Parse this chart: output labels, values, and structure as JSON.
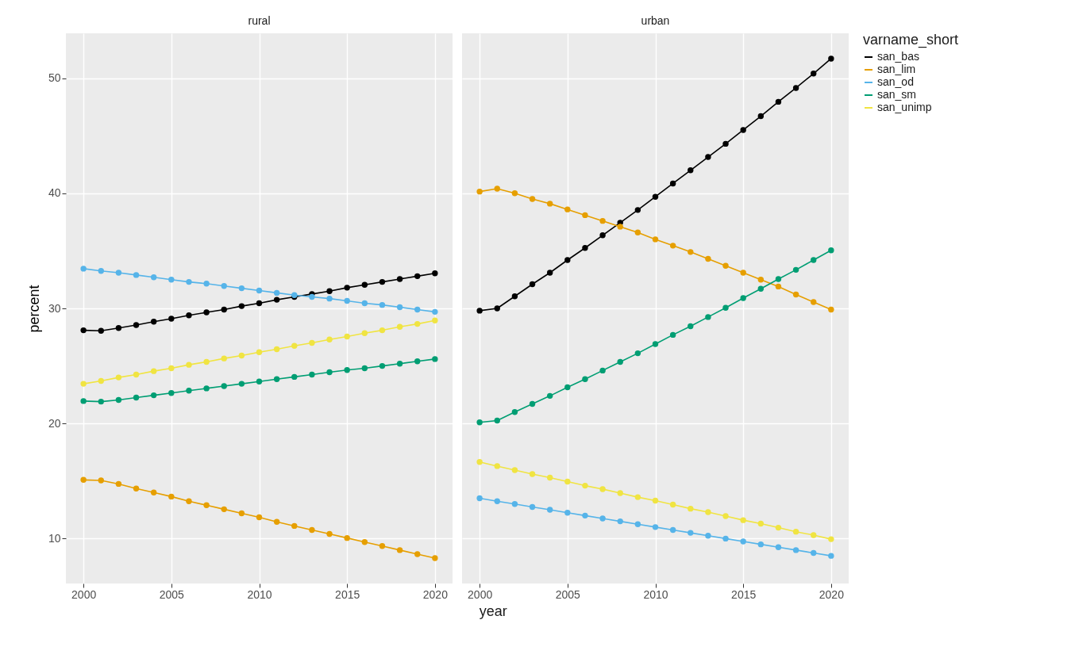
{
  "chart_data": [
    {
      "type": "line",
      "title": "rural",
      "xlabel": "year",
      "ylabel": "percent",
      "legend": "right",
      "grid": true,
      "marker": "circle",
      "x": [
        2000,
        2001,
        2002,
        2003,
        2004,
        2005,
        2006,
        2007,
        2008,
        2009,
        2010,
        2011,
        2012,
        2013,
        2014,
        2015,
        2016,
        2017,
        2018,
        2019,
        2020
      ],
      "xlim": [
        1999,
        2021
      ],
      "xticks": [
        2000,
        2005,
        2010,
        2015,
        2020
      ],
      "ylim": [
        6.1,
        53.9
      ],
      "yticks": [
        10,
        20,
        30,
        40,
        50
      ],
      "series": [
        {
          "name": "san_bas",
          "color": "#000000",
          "values": [
            28.1,
            28.05,
            28.3,
            28.55,
            28.85,
            29.1,
            29.4,
            29.65,
            29.9,
            30.2,
            30.45,
            30.75,
            31.0,
            31.25,
            31.5,
            31.8,
            32.05,
            32.3,
            32.55,
            32.8,
            33.05
          ]
        },
        {
          "name": "san_lim",
          "color": "#e69f00",
          "values": [
            15.1,
            15.05,
            14.75,
            14.35,
            14.0,
            13.65,
            13.25,
            12.9,
            12.55,
            12.2,
            11.85,
            11.45,
            11.1,
            10.75,
            10.4,
            10.05,
            9.7,
            9.35,
            9.0,
            8.65,
            8.3
          ]
        },
        {
          "name": "san_od",
          "color": "#56b4e9",
          "values": [
            33.45,
            33.25,
            33.1,
            32.9,
            32.7,
            32.5,
            32.3,
            32.15,
            31.95,
            31.75,
            31.55,
            31.35,
            31.15,
            31.0,
            30.85,
            30.65,
            30.45,
            30.3,
            30.1,
            29.9,
            29.7
          ]
        },
        {
          "name": "san_sm",
          "color": "#009e73",
          "values": [
            21.95,
            21.9,
            22.05,
            22.25,
            22.45,
            22.65,
            22.85,
            23.05,
            23.25,
            23.45,
            23.65,
            23.85,
            24.05,
            24.25,
            24.45,
            24.65,
            24.8,
            25.0,
            25.2,
            25.4,
            25.6
          ]
        },
        {
          "name": "san_unimp",
          "color": "#f0e442",
          "values": [
            23.45,
            23.7,
            24.0,
            24.25,
            24.55,
            24.8,
            25.1,
            25.35,
            25.65,
            25.9,
            26.2,
            26.45,
            26.75,
            27.0,
            27.3,
            27.55,
            27.85,
            28.1,
            28.4,
            28.65,
            28.95
          ]
        }
      ]
    },
    {
      "type": "line",
      "title": "urban",
      "legend_title": "varname_short",
      "legend": "right",
      "grid": true,
      "marker": "circle",
      "tick_labels": "x",
      "x": [
        2000,
        2001,
        2002,
        2003,
        2004,
        2005,
        2006,
        2007,
        2008,
        2009,
        2010,
        2011,
        2012,
        2013,
        2014,
        2015,
        2016,
        2017,
        2018,
        2019,
        2020
      ],
      "xlim": [
        1999,
        2021
      ],
      "xticks": [
        2000,
        2005,
        2010,
        2015,
        2020
      ],
      "ylim": [
        6.1,
        53.9
      ],
      "yticks": [
        10,
        20,
        30,
        40,
        50
      ],
      "series": [
        {
          "name": "san_bas",
          "color": "#000000",
          "values": [
            29.8,
            30.0,
            31.05,
            32.1,
            33.1,
            34.2,
            35.25,
            36.35,
            37.45,
            38.55,
            39.7,
            40.85,
            42.0,
            43.15,
            44.3,
            45.5,
            46.7,
            47.95,
            49.15,
            50.4,
            51.7
          ]
        },
        {
          "name": "san_lim",
          "color": "#e69f00",
          "values": [
            40.15,
            40.4,
            40.0,
            39.5,
            39.1,
            38.6,
            38.1,
            37.6,
            37.1,
            36.6,
            36.0,
            35.45,
            34.9,
            34.3,
            33.7,
            33.1,
            32.5,
            31.9,
            31.2,
            30.55,
            29.9
          ]
        },
        {
          "name": "san_od",
          "color": "#56b4e9",
          "values": [
            13.5,
            13.25,
            13.0,
            12.75,
            12.5,
            12.25,
            12.0,
            11.75,
            11.5,
            11.25,
            11.0,
            10.75,
            10.5,
            10.25,
            10.0,
            9.75,
            9.5,
            9.25,
            9.0,
            8.75,
            8.5
          ]
        },
        {
          "name": "san_sm",
          "color": "#009e73",
          "values": [
            20.1,
            20.25,
            21.0,
            21.7,
            22.4,
            23.15,
            23.85,
            24.6,
            25.35,
            26.1,
            26.9,
            27.7,
            28.45,
            29.25,
            30.05,
            30.9,
            31.7,
            32.55,
            33.35,
            34.2,
            35.05
          ]
        },
        {
          "name": "san_unimp",
          "color": "#f0e442",
          "values": [
            16.65,
            16.3,
            15.95,
            15.6,
            15.3,
            14.95,
            14.6,
            14.3,
            13.95,
            13.6,
            13.3,
            12.95,
            12.6,
            12.3,
            11.95,
            11.6,
            11.3,
            10.95,
            10.6,
            10.3,
            9.95
          ]
        }
      ]
    }
  ]
}
